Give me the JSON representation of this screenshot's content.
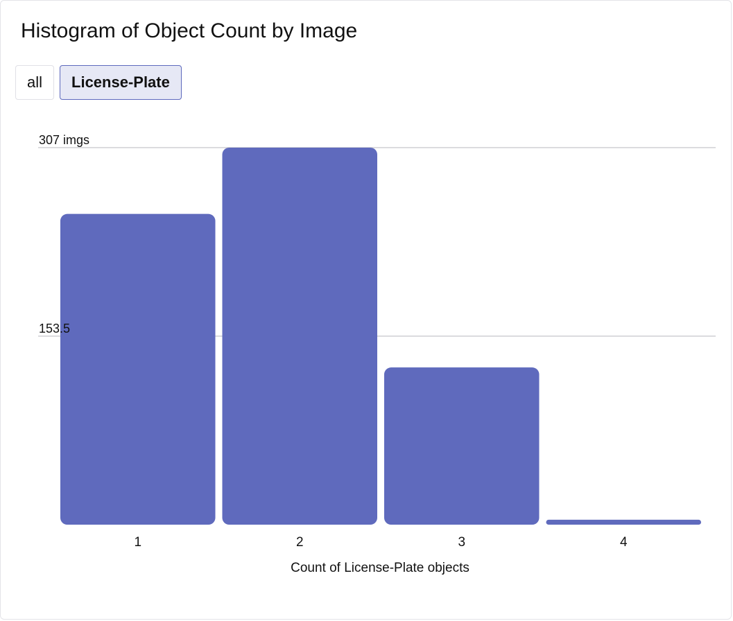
{
  "title": "Histogram of Object Count by Image",
  "filters": [
    {
      "label": "all",
      "active": false
    },
    {
      "label": "License-Plate",
      "active": true
    }
  ],
  "colors": {
    "bar": "#5f6abd",
    "gridline": "#cfcfd4",
    "active_filter_bg": "#e6e8f5",
    "active_filter_border": "#5d69bd"
  },
  "chart_data": {
    "type": "bar",
    "categories": [
      "1",
      "2",
      "3",
      "4"
    ],
    "values": [
      253,
      307,
      128,
      4
    ],
    "ylim": [
      0,
      307
    ],
    "yticks": [
      {
        "value": 307,
        "label": "307 imgs"
      },
      {
        "value": 153.5,
        "label": "153.5"
      }
    ],
    "xlabel": "Count of License-Plate objects",
    "ylabel": "",
    "grid": true
  }
}
